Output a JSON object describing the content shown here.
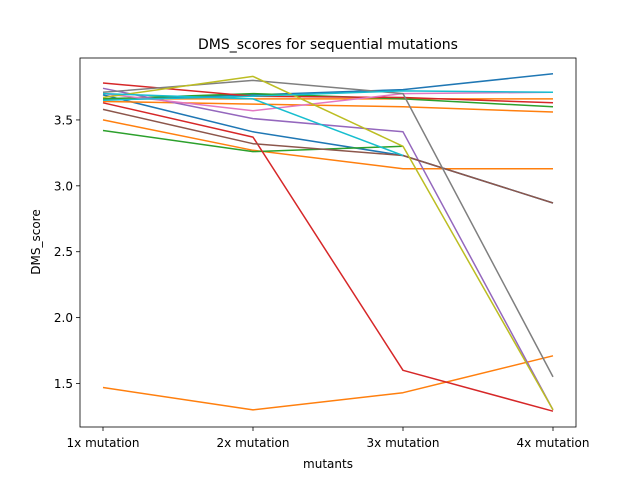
{
  "chart_data": {
    "type": "line",
    "title": "DMS_scores for sequential mutations",
    "xlabel": "mutants",
    "ylabel": "DMS_score",
    "categories": [
      "1x mutation",
      "2x mutation",
      "3x mutation",
      "4x mutation"
    ],
    "ylim": [
      1.17,
      3.97
    ],
    "yticks": [
      "1.5",
      "2.0",
      "2.5",
      "3.0",
      "3.5"
    ],
    "yticks_values": [
      1.5,
      2.0,
      2.5,
      3.0,
      3.5
    ],
    "grid": false,
    "legend": "none",
    "series": [
      {
        "color": "#1f77b4",
        "values": [
          3.66,
          3.69,
          3.73,
          3.85
        ]
      },
      {
        "color": "#1f77b4",
        "values": [
          3.69,
          3.41,
          3.23,
          2.87
        ]
      },
      {
        "color": "#ff7f0e",
        "values": [
          1.47,
          1.3,
          1.43,
          1.71
        ]
      },
      {
        "color": "#ff7f0e",
        "values": [
          3.5,
          3.27,
          3.13,
          3.13
        ]
      },
      {
        "color": "#ff7f0e",
        "values": [
          3.64,
          3.62,
          3.6,
          3.56
        ]
      },
      {
        "color": "#ff7f0e",
        "values": [
          3.66,
          3.66,
          3.66,
          3.66
        ]
      },
      {
        "color": "#2ca02c",
        "values": [
          3.42,
          3.26,
          3.3,
          null
        ]
      },
      {
        "color": "#2ca02c",
        "values": [
          3.66,
          3.7,
          3.66,
          3.6
        ]
      },
      {
        "color": "#d62728",
        "values": [
          3.78,
          3.68,
          3.67,
          3.63
        ]
      },
      {
        "color": "#d62728",
        "values": [
          3.63,
          3.37,
          1.6,
          1.29
        ]
      },
      {
        "color": "#9467bd",
        "values": [
          3.74,
          3.51,
          3.41,
          1.3
        ]
      },
      {
        "color": "#8c564b",
        "values": [
          3.58,
          3.32,
          3.23,
          2.87
        ]
      },
      {
        "color": "#e377c2",
        "values": [
          3.7,
          3.57,
          3.7,
          3.71
        ]
      },
      {
        "color": "#7f7f7f",
        "values": [
          3.71,
          3.8,
          3.7,
          1.55
        ]
      },
      {
        "color": "#bcbd22",
        "values": [
          3.67,
          3.83,
          3.3,
          1.3
        ]
      },
      {
        "color": "#17becf",
        "values": [
          3.7,
          3.66,
          3.23,
          null
        ]
      },
      {
        "color": "#17becf",
        "values": [
          3.65,
          3.68,
          3.72,
          3.71
        ]
      }
    ]
  }
}
